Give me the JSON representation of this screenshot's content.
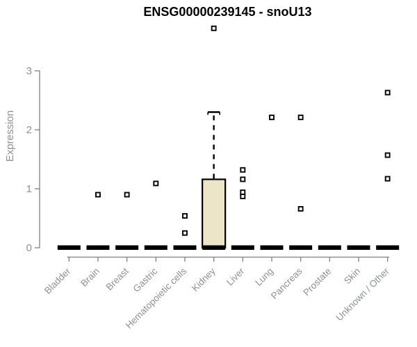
{
  "chart_data": {
    "type": "boxplot",
    "title": "ENSG00000239145 - snoU13",
    "xlabel": "",
    "ylabel": "Expression",
    "ylim": [
      0,
      3
    ],
    "yticks": [
      "0",
      "1",
      "2",
      "3"
    ],
    "grid": false,
    "legend": "none",
    "categories": [
      "Bladder",
      "Brain",
      "Breast",
      "Gastric",
      "Hematopoietic cells",
      "Kidney",
      "Liver",
      "Lung",
      "Pancreas",
      "Prostate",
      "Skin",
      "Unknown / Other"
    ],
    "boxes": [
      {
        "category": "Bladder",
        "whisker_low": 0,
        "q1": 0,
        "median": 0,
        "q3": 0,
        "whisker_high": 0,
        "outliers": []
      },
      {
        "category": "Brain",
        "whisker_low": 0,
        "q1": 0,
        "median": 0,
        "q3": 0,
        "whisker_high": 0,
        "outliers": [
          0.9
        ]
      },
      {
        "category": "Breast",
        "whisker_low": 0,
        "q1": 0,
        "median": 0,
        "q3": 0,
        "whisker_high": 0,
        "outliers": [
          0.9
        ]
      },
      {
        "category": "Gastric",
        "whisker_low": 0,
        "q1": 0,
        "median": 0,
        "q3": 0,
        "whisker_high": 0,
        "outliers": [
          1.09
        ]
      },
      {
        "category": "Hematopoietic cells",
        "whisker_low": 0,
        "q1": 0,
        "median": 0,
        "q3": 0,
        "whisker_high": 0,
        "outliers": [
          0.54,
          0.25
        ]
      },
      {
        "category": "Kidney",
        "whisker_low": 0,
        "q1": 0,
        "median": 0,
        "q3": 1.16,
        "whisker_high": 2.3,
        "outliers": [
          3.72
        ]
      },
      {
        "category": "Liver",
        "whisker_low": 0,
        "q1": 0,
        "median": 0,
        "q3": 0,
        "whisker_high": 0,
        "outliers": [
          1.32,
          1.16,
          0.94,
          0.87
        ]
      },
      {
        "category": "Lung",
        "whisker_low": 0,
        "q1": 0,
        "median": 0,
        "q3": 0,
        "whisker_high": 0,
        "outliers": [
          2.21
        ]
      },
      {
        "category": "Pancreas",
        "whisker_low": 0,
        "q1": 0,
        "median": 0,
        "q3": 0,
        "whisker_high": 0,
        "outliers": [
          2.21,
          0.66
        ]
      },
      {
        "category": "Prostate",
        "whisker_low": 0,
        "q1": 0,
        "median": 0,
        "q3": 0,
        "whisker_high": 0,
        "outliers": []
      },
      {
        "category": "Skin",
        "whisker_low": 0,
        "q1": 0,
        "median": 0,
        "q3": 0,
        "whisker_high": 0,
        "outliers": []
      },
      {
        "category": "Unknown / Other",
        "whisker_low": 0,
        "q1": 0,
        "median": 0,
        "q3": 0,
        "whisker_high": 0,
        "outliers": [
          2.63,
          1.57,
          1.17
        ]
      }
    ],
    "colors": {
      "box_fill": "#ece5c8",
      "box_border": "#000000",
      "median_bar": "#000000",
      "whisker": "#000000",
      "outlier_border": "#000000",
      "outlier_fill": "#ffffff",
      "axis_line": "#808080",
      "axis_text": "#8b9196",
      "title_text": "#000000",
      "background": "#ffffff"
    }
  }
}
